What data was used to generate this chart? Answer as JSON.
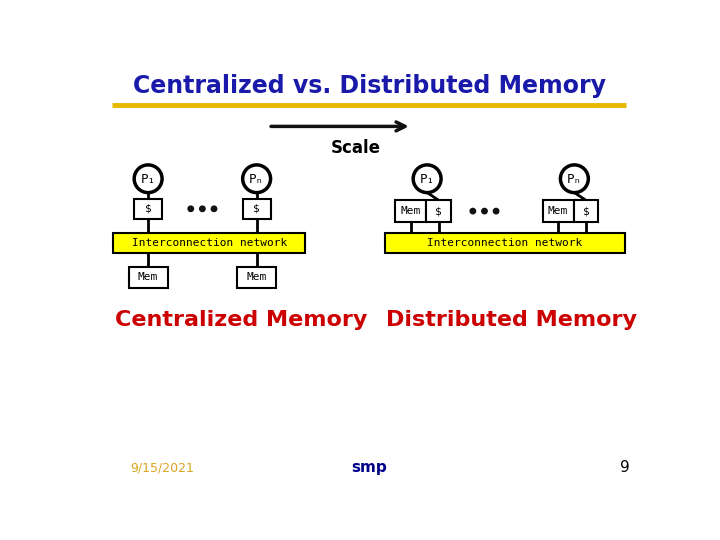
{
  "title": "Centralized vs. Distributed Memory",
  "title_color": "#1a1aaa",
  "title_fontsize": 17,
  "gold_line_color": "#E8B800",
  "arrow_color": "#111111",
  "scale_label": "Scale",
  "centralized_label": "Centralized Memory",
  "distributed_label": "Distributed Memory",
  "label_color": "#CC0000",
  "label_fontsize": 16,
  "interconnect_color": "#FFFF00",
  "interconnect_text": "Interconnection network",
  "dots_color": "#111111",
  "box_color": "#FFFFFF",
  "box_edge": "#000000",
  "circle_color": "#FFFFFF",
  "circle_edge": "#000000",
  "date_text": "9/15/2021",
  "date_color": "#DAA520",
  "smp_text": "smp",
  "smp_color": "#00008B",
  "page_num": "9",
  "page_color": "#000000",
  "bg_color": "#FFFFFF"
}
